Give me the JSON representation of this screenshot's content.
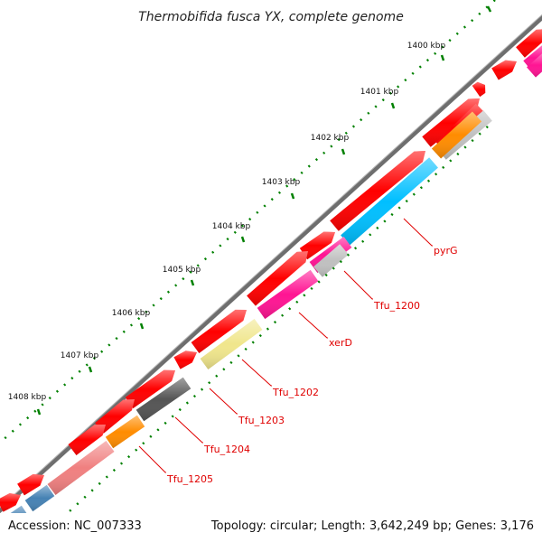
{
  "title": "Thermobifida fusca YX, complete genome",
  "footer": {
    "accession": "Accession: NC_007333",
    "summary": "Topology: circular; Length: 3,642,249 bp; Genes: 3,176"
  },
  "ruler": {
    "labels": [
      "1400 kbp",
      "1401 kbp",
      "1402 kbp",
      "1403 kbp",
      "1404 kbp",
      "1405 kbp",
      "1406 kbp",
      "1407 kbp",
      "1408 kbp"
    ]
  },
  "genes": [
    {
      "label": "pyrG",
      "color": "#00bfff"
    },
    {
      "label": "Tfu_1200",
      "color": "#ff1493"
    },
    {
      "label": "xerD",
      "color": "#ff1493"
    },
    {
      "label": "Tfu_1202",
      "color": "#f0e68c"
    },
    {
      "label": "Tfu_1203",
      "color": "#555555"
    },
    {
      "label": "Tfu_1204",
      "color": "#ff8c00"
    },
    {
      "label": "Tfu_1205",
      "color": "#f08080"
    }
  ],
  "colors": {
    "backbone": "#808080",
    "forward_strand": "#ff0000",
    "feature_red": "#ff0000",
    "feature_blue": "#4682b4",
    "feature_gray": "#c0c0c0",
    "tick_green": "#008000",
    "label_line": "#e00000"
  }
}
